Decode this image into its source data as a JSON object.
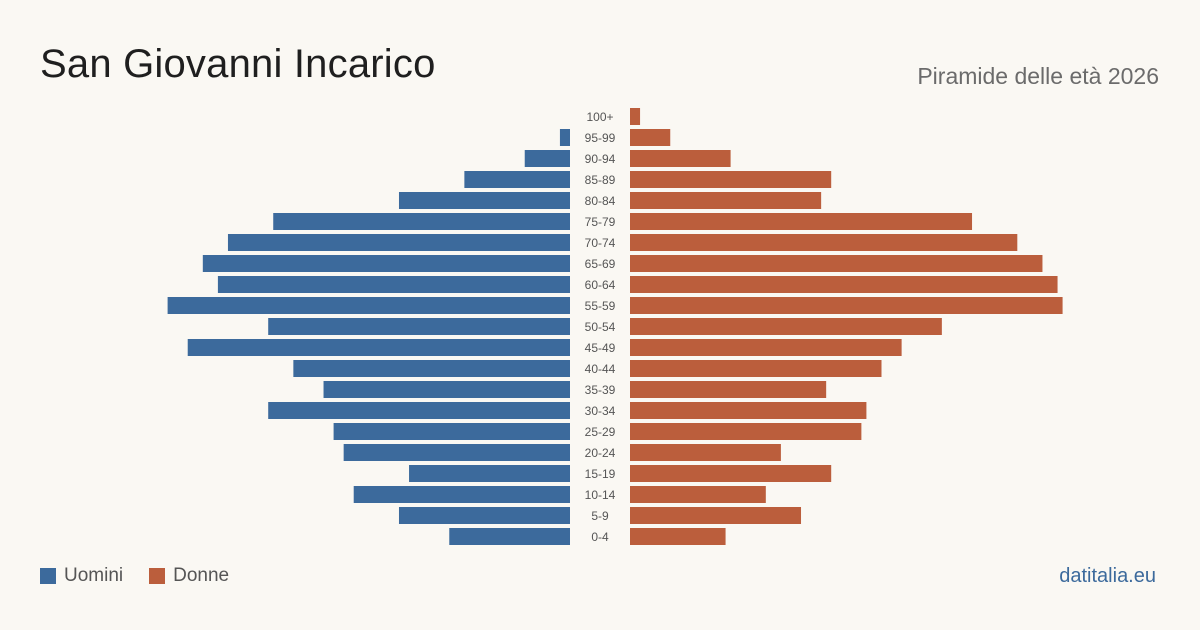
{
  "header": {
    "title": "San Giovanni Incarico",
    "subtitle": "Piramide delle età 2026"
  },
  "legend": [
    {
      "label": "Uomini",
      "color": "#3c6a9c"
    },
    {
      "label": "Donne",
      "color": "#bb5e3c"
    }
  ],
  "footer": {
    "source": "datitalia.eu"
  },
  "chart_data": {
    "type": "bar",
    "orientation": "horizontal-pyramid",
    "categories": [
      "100+",
      "95-99",
      "90-94",
      "85-89",
      "80-84",
      "75-79",
      "70-74",
      "65-69",
      "60-64",
      "55-59",
      "50-54",
      "45-49",
      "40-44",
      "35-39",
      "30-34",
      "25-29",
      "20-24",
      "15-19",
      "10-14",
      "5-9",
      "0-4"
    ],
    "series": [
      {
        "name": "Uomini",
        "color": "#3c6a9c",
        "values": [
          0,
          2,
          9,
          21,
          34,
          59,
          68,
          73,
          70,
          80,
          60,
          76,
          55,
          49,
          60,
          47,
          45,
          32,
          43,
          34,
          24
        ]
      },
      {
        "name": "Donne",
        "color": "#bb5e3c",
        "values": [
          2,
          8,
          20,
          40,
          38,
          68,
          77,
          82,
          85,
          86,
          62,
          54,
          50,
          39,
          47,
          46,
          30,
          40,
          27,
          34,
          19
        ]
      }
    ],
    "legend_position": "bottom-left",
    "grid": false
  }
}
